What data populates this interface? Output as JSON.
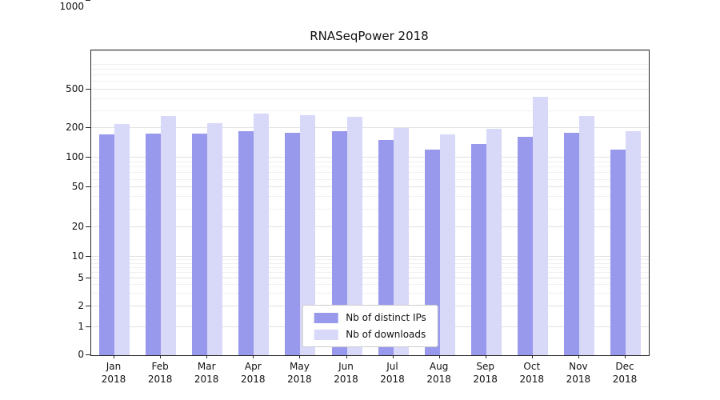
{
  "chart_data": {
    "type": "bar",
    "title": "RNASeqPower 2018",
    "categories": [
      "Jan 2018",
      "Feb 2018",
      "Mar 2018",
      "Apr 2018",
      "May 2018",
      "Jun 2018",
      "Jul 2018",
      "Aug 2018",
      "Sep 2018",
      "Oct 2018",
      "Nov 2018",
      "Dec 2018"
    ],
    "series": [
      {
        "name": "Nb of distinct IPs",
        "color": "#9898ec",
        "values": [
          173,
          176,
          176,
          186,
          180,
          186,
          151,
          121,
          138,
          163,
          180,
          121
        ]
      },
      {
        "name": "Nb of downloads",
        "color": "#d8d8f8",
        "values": [
          220,
          266,
          225,
          282,
          272,
          262,
          202,
          174,
          196,
          420,
          266,
          185
        ]
      }
    ],
    "yticks": [
      0,
      1,
      2,
      5,
      10,
      20,
      50,
      100,
      200,
      500,
      1000
    ],
    "yscale": "symlog",
    "ylim": [
      0,
      1000
    ],
    "xlabel": "",
    "ylabel": "",
    "grid": true,
    "legend_position": "lower center"
  }
}
